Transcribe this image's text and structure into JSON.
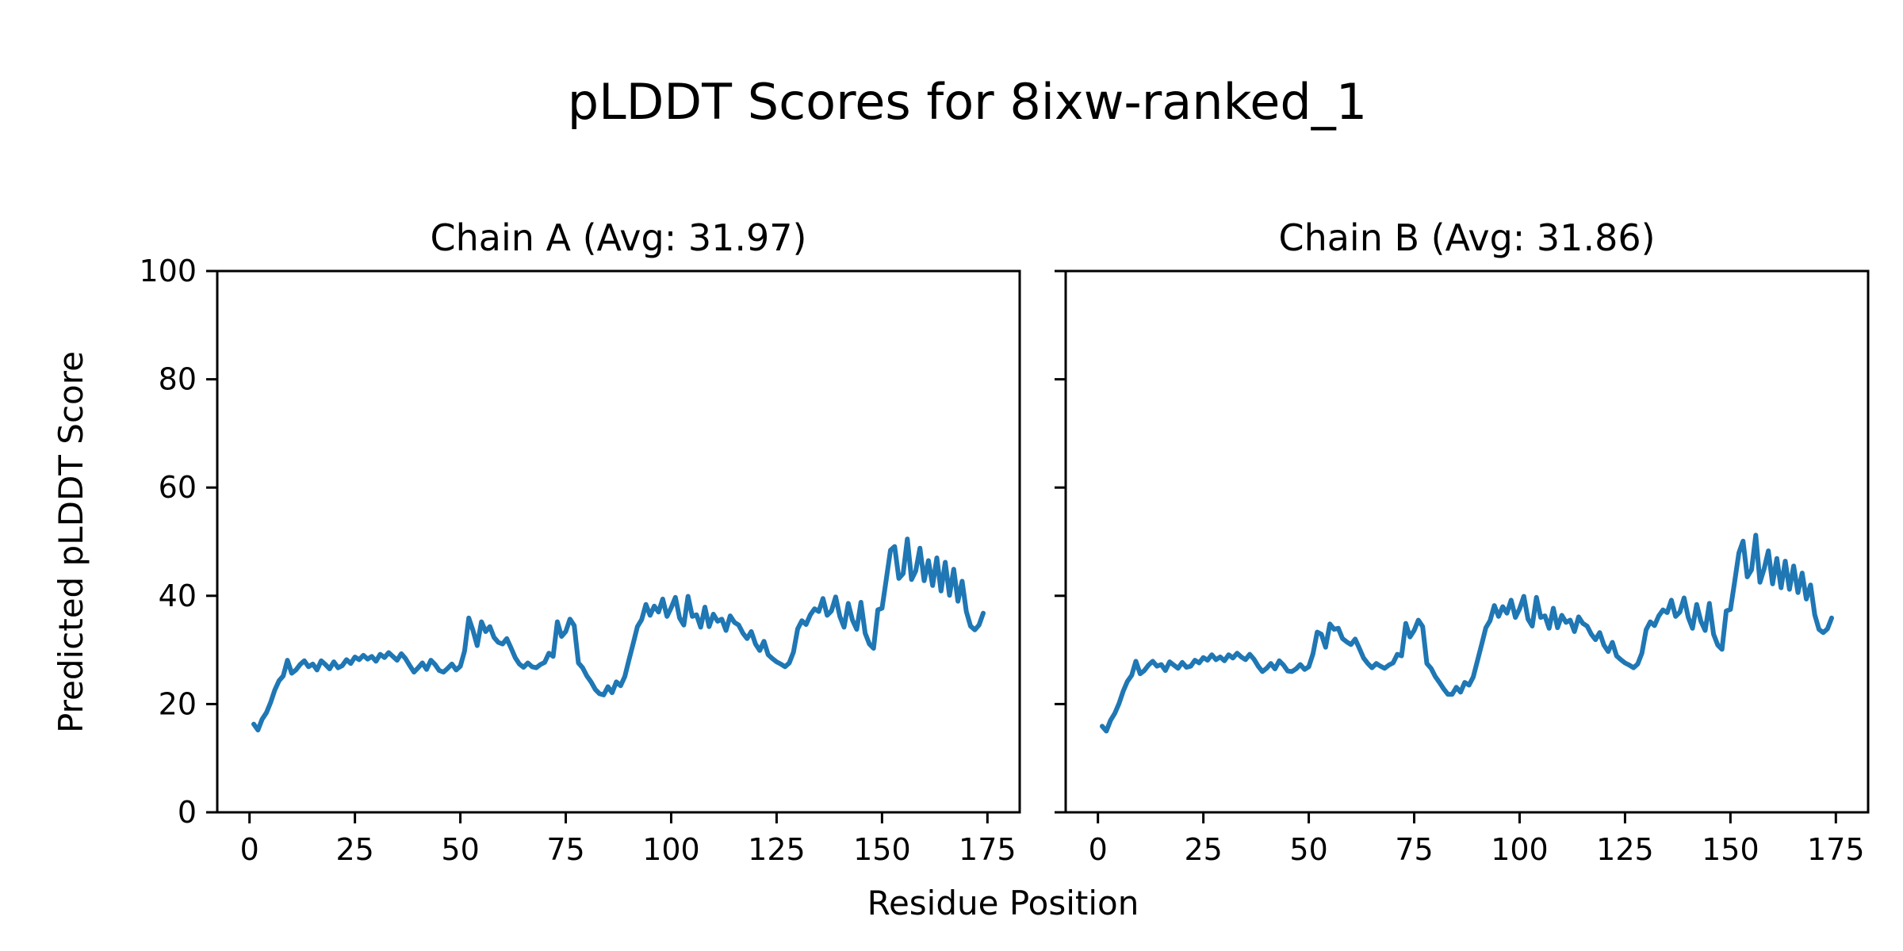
{
  "figure": {
    "title": "pLDDT Scores for 8ixw-ranked_1",
    "xlabel": "Residue Position",
    "ylabel": "Predicted pLDDT Score",
    "background_color": "#ffffff",
    "text_color": "#000000",
    "spine_color": "#000000"
  },
  "chart_data": [
    {
      "type": "line",
      "title": "Chain A (Avg: 31.97)",
      "series_name": "Chain A pLDDT",
      "avg": 31.97,
      "line_color": "#1f77b4",
      "grid": false,
      "legend": "none",
      "xlim": [
        -7.65,
        182.65
      ],
      "ylim": [
        0,
        100
      ],
      "x_ticks": [
        0,
        25,
        50,
        75,
        100,
        125,
        150,
        175
      ],
      "y_ticks": [
        0,
        20,
        40,
        60,
        80,
        100
      ],
      "show_y_tick_labels": true,
      "x_start": 1,
      "values": [
        16.3,
        15.2,
        17.2,
        18.4,
        20.3,
        22.6,
        24.3,
        25.2,
        28.1,
        25.7,
        26.3,
        27.3,
        28.0,
        26.9,
        27.4,
        26.3,
        28.0,
        27.3,
        26.5,
        27.8,
        26.7,
        27.1,
        28.2,
        27.5,
        28.7,
        28.2,
        29.0,
        28.3,
        28.8,
        27.9,
        29.2,
        28.6,
        29.5,
        28.8,
        28.1,
        29.3,
        28.4,
        27.1,
        25.9,
        26.7,
        27.6,
        26.4,
        28.1,
        27.3,
        26.2,
        25.9,
        26.6,
        27.4,
        26.3,
        27.0,
        29.8,
        35.9,
        33.6,
        30.8,
        35.2,
        33.4,
        34.3,
        32.3,
        31.4,
        31.1,
        32.1,
        30.4,
        28.6,
        27.4,
        26.8,
        27.6,
        26.9,
        26.7,
        27.3,
        27.7,
        29.4,
        28.8,
        35.2,
        32.5,
        33.4,
        35.7,
        34.5,
        27.6,
        26.7,
        25.2,
        24.1,
        22.7,
        21.9,
        21.7,
        23.2,
        22.1,
        24.1,
        23.4,
        25.1,
        28.2,
        31.2,
        34.3,
        35.6,
        38.4,
        36.4,
        38.1,
        37.0,
        39.4,
        36.2,
        37.8,
        39.7,
        35.9,
        34.6,
        39.9,
        36.2,
        36.5,
        34.2,
        37.9,
        34.3,
        36.6,
        35.3,
        35.7,
        33.6,
        36.3,
        35.1,
        34.6,
        33.1,
        32.1,
        33.4,
        31.1,
        29.9,
        31.6,
        29.1,
        28.4,
        27.8,
        27.4,
        26.9,
        27.6,
        29.6,
        33.9,
        35.4,
        34.7,
        36.5,
        37.6,
        37.1,
        39.5,
        36.4,
        37.2,
        39.8,
        36.2,
        34.2,
        38.6,
        35.5,
        33.8,
        38.8,
        33.1,
        31.1,
        30.3,
        37.4,
        37.7,
        43.0,
        48.4,
        49.1,
        43.2,
        44.1,
        50.5,
        43.0,
        44.6,
        48.8,
        42.8,
        46.5,
        41.9,
        47.0,
        40.9,
        46.2,
        40.1,
        44.9,
        39.0,
        42.7,
        37.1,
        34.4,
        33.7,
        34.6,
        36.8
      ]
    },
    {
      "type": "line",
      "title": "Chain B (Avg: 31.86)",
      "series_name": "Chain B pLDDT",
      "avg": 31.86,
      "line_color": "#1f77b4",
      "grid": false,
      "legend": "none",
      "xlim": [
        -7.65,
        182.65
      ],
      "ylim": [
        0,
        100
      ],
      "x_ticks": [
        0,
        25,
        50,
        75,
        100,
        125,
        150,
        175
      ],
      "y_ticks": [
        0,
        20,
        40,
        60,
        80,
        100
      ],
      "show_y_tick_labels": false,
      "x_start": 1,
      "values": [
        15.9,
        15.0,
        17.0,
        18.3,
        20.1,
        22.4,
        24.2,
        25.3,
        27.9,
        25.6,
        26.2,
        27.2,
        27.9,
        27.0,
        27.3,
        26.2,
        27.8,
        27.2,
        26.6,
        27.7,
        26.8,
        27.0,
        28.1,
        27.6,
        28.6,
        28.1,
        29.1,
        28.2,
        28.7,
        28.0,
        29.1,
        28.5,
        29.4,
        28.7,
        28.2,
        29.2,
        28.3,
        27.0,
        26.0,
        26.6,
        27.5,
        26.5,
        28.0,
        27.2,
        26.1,
        26.0,
        26.5,
        27.3,
        26.4,
        26.9,
        29.3,
        33.3,
        32.9,
        30.5,
        34.8,
        33.8,
        34.0,
        32.1,
        31.5,
        31.0,
        32.0,
        30.3,
        28.5,
        27.5,
        26.7,
        27.5,
        27.0,
        26.6,
        27.2,
        27.6,
        29.2,
        28.9,
        34.9,
        32.4,
        33.6,
        35.5,
        34.3,
        27.5,
        26.6,
        25.1,
        24.0,
        22.8,
        21.8,
        21.8,
        23.1,
        22.2,
        24.0,
        23.5,
        25.0,
        28.0,
        31.0,
        34.1,
        35.4,
        38.2,
        36.2,
        38.0,
        36.8,
        39.2,
        36.0,
        37.6,
        39.9,
        35.7,
        34.4,
        39.7,
        36.0,
        36.3,
        34.0,
        37.7,
        34.1,
        36.4,
        35.1,
        35.5,
        33.4,
        36.1,
        34.9,
        34.4,
        32.9,
        31.9,
        33.2,
        30.9,
        29.7,
        31.4,
        28.9,
        28.2,
        27.6,
        27.2,
        26.7,
        27.4,
        29.4,
        33.7,
        35.2,
        34.5,
        36.3,
        37.4,
        36.9,
        39.2,
        36.2,
        37.0,
        39.6,
        36.0,
        34.0,
        38.4,
        35.3,
        33.6,
        38.6,
        32.9,
        30.9,
        30.1,
        37.2,
        37.5,
        42.6,
        47.9,
        50.1,
        43.5,
        44.8,
        51.2,
        42.5,
        45.0,
        48.3,
        42.2,
        46.9,
        41.5,
        46.4,
        41.2,
        45.5,
        40.6,
        44.2,
        39.4,
        42.0,
        36.5,
        33.8,
        33.2,
        33.9,
        35.9
      ]
    }
  ]
}
